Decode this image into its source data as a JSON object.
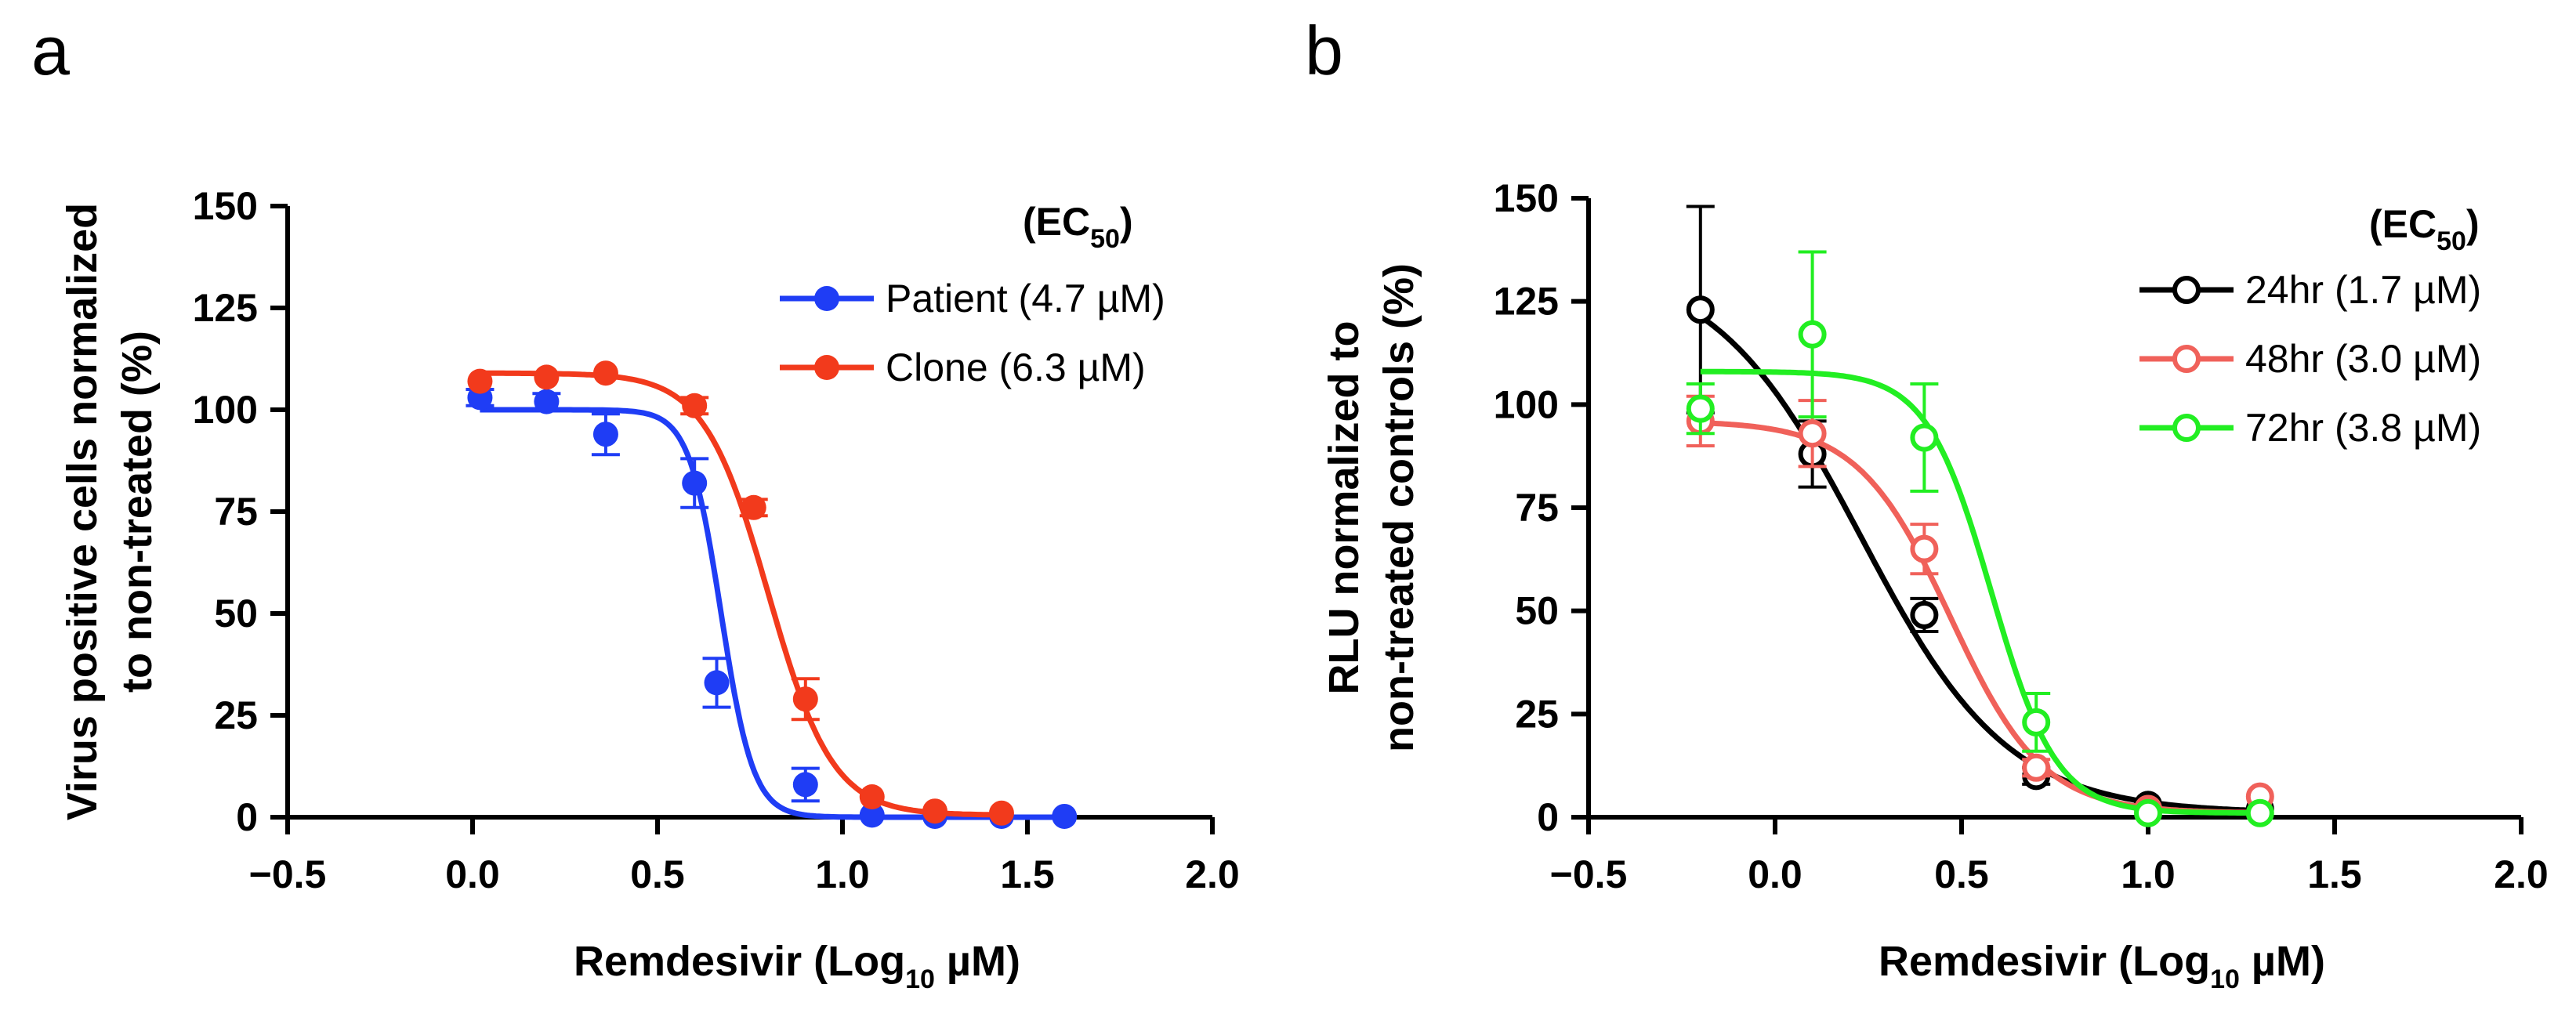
{
  "chart_data": [
    {
      "panel": "a",
      "type": "scatter",
      "xlabel_main": "Remdesivir (Log",
      "xlabel_sub": "10",
      "xlabel_tail": " µM)",
      "ylabel": [
        "Virus positive cells normalized",
        "to non-treated (%)"
      ],
      "xlim": [
        -0.5,
        2.0
      ],
      "ylim": [
        0,
        150
      ],
      "xticks": [
        -0.5,
        0.0,
        0.5,
        1.0,
        1.5,
        2.0
      ],
      "xtick_labels": [
        "−0.5",
        "0.0",
        "0.5",
        "1.0",
        "1.5",
        "2.0"
      ],
      "yticks": [
        0,
        25,
        50,
        75,
        100,
        125,
        150
      ],
      "ytick_labels": [
        "0",
        "25",
        "50",
        "75",
        "100",
        "125",
        "150"
      ],
      "legend_title_main": "(EC",
      "legend_title_sub": "50",
      "legend_title_tail": ")",
      "series": [
        {
          "name": "Patient",
          "legend_label": "Patient (4.7 µM)",
          "color": "#1f3df5",
          "marker": "filled",
          "x": [
            0.02,
            0.2,
            0.36,
            0.6,
            0.66,
            0.9,
            1.08,
            1.25,
            1.43,
            1.6
          ],
          "y": [
            103,
            102,
            94,
            82,
            33,
            8,
            0.5,
            0.2,
            0.2,
            0.2
          ],
          "err": [
            2,
            2,
            5,
            6,
            6,
            4,
            0.5,
            0.5,
            0.5,
            0.5
          ],
          "fit": {
            "top": 100,
            "bottom": 0,
            "logEC50": 0.672,
            "hill": -10
          }
        },
        {
          "name": "Clone",
          "legend_label": "Clone   (6.3 µM)",
          "color": "#f23a1c",
          "marker": "filled",
          "x": [
            0.02,
            0.2,
            0.36,
            0.6,
            0.76,
            0.9,
            1.08,
            1.25,
            1.43
          ],
          "y": [
            107,
            108,
            109,
            101,
            76,
            29,
            5,
            1.5,
            1
          ],
          "err": [
            1,
            1,
            1,
            2,
            2,
            5,
            1,
            0.5,
            0.5
          ],
          "fit": {
            "top": 109,
            "bottom": 0.5,
            "logEC50": 0.8,
            "hill": -5
          }
        }
      ]
    },
    {
      "panel": "b",
      "type": "scatter",
      "xlabel_main": "Remdesivir (Log",
      "xlabel_sub": "10",
      "xlabel_tail": " µM)",
      "ylabel": [
        "RLU normalized to",
        "non-treated controls (%)"
      ],
      "xlim": [
        -0.5,
        2.0
      ],
      "ylim": [
        0,
        150
      ],
      "xticks": [
        -0.5,
        0.0,
        0.5,
        1.0,
        1.5,
        2.0
      ],
      "xtick_labels": [
        "−0.5",
        "0.0",
        "0.5",
        "1.0",
        "1.5",
        "2.0"
      ],
      "yticks": [
        0,
        25,
        50,
        75,
        100,
        125,
        150
      ],
      "ytick_labels": [
        "0",
        "25",
        "50",
        "75",
        "100",
        "125",
        "150"
      ],
      "legend_title_main": "(EC",
      "legend_title_sub": "50",
      "legend_title_tail": ")",
      "series": [
        {
          "name": "24hr",
          "legend_label": "24hr (1.7 µM)",
          "color": "#000000",
          "marker": "open",
          "x": [
            -0.2,
            0.1,
            0.4,
            0.7,
            1.0,
            1.3
          ],
          "y": [
            123,
            88,
            49,
            10,
            3,
            2
          ],
          "err": [
            25,
            8,
            4,
            2,
            1,
            1
          ],
          "fit": {
            "top": 135,
            "bottom": 1,
            "logEC50": 0.23,
            "hill": -2.2
          }
        },
        {
          "name": "48hr",
          "legend_label": "48hr (3.0 µM)",
          "color": "#f0615a",
          "marker": "open",
          "x": [
            -0.2,
            0.1,
            0.4,
            0.7,
            1.0,
            1.3
          ],
          "y": [
            96,
            93,
            65,
            12,
            2,
            5
          ],
          "err": [
            6,
            8,
            6,
            2,
            1,
            1
          ],
          "fit": {
            "top": 96,
            "bottom": 1,
            "logEC50": 0.47,
            "hill": -3.5
          }
        },
        {
          "name": "72hr",
          "legend_label": "72hr (3.8 µM)",
          "color": "#22ee22",
          "marker": "open",
          "x": [
            -0.2,
            0.1,
            0.4,
            0.7,
            1.0,
            1.3
          ],
          "y": [
            99,
            117,
            92,
            23,
            1,
            1
          ],
          "err": [
            6,
            20,
            13,
            7,
            1,
            1
          ],
          "fit": {
            "top": 108,
            "bottom": 1,
            "logEC50": 0.58,
            "hill": -5
          }
        }
      ]
    }
  ]
}
